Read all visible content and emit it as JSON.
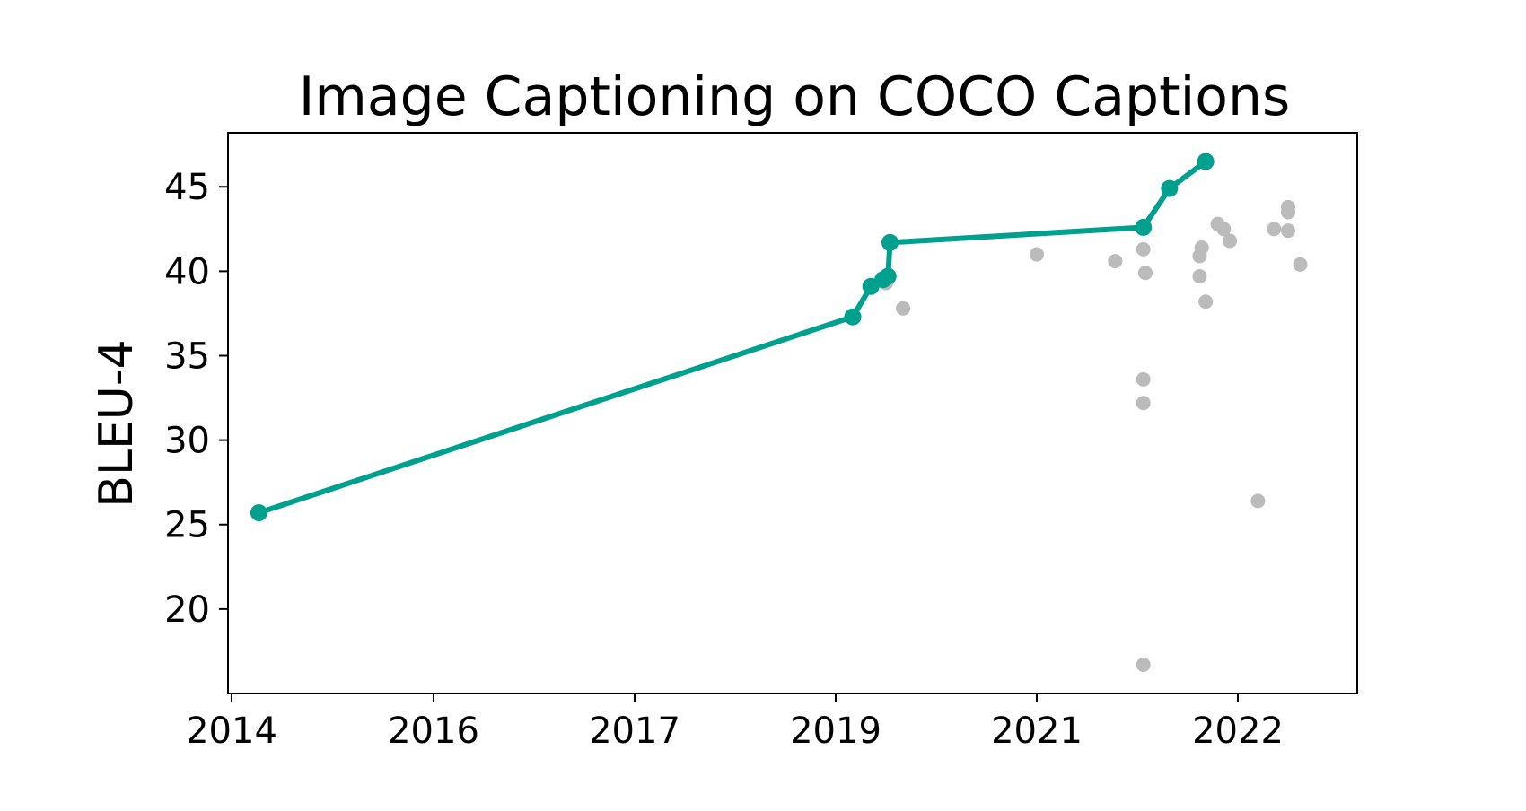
{
  "chart_data": {
    "type": "scatter",
    "title": "Image Captioning on COCO Captions",
    "xlabel": "",
    "ylabel": "BLEU-4",
    "x_ticks": [
      2014,
      2016,
      2017,
      2019,
      2021,
      2022
    ],
    "y_ticks": [
      20,
      25,
      30,
      35,
      40,
      45
    ],
    "ylim": [
      15,
      48.2
    ],
    "grid": false,
    "colors": {
      "frontier": "#00a08f",
      "other": "#bbbbbb"
    },
    "frontier": {
      "points": [
        {
          "x": 2014.27,
          "y": 25.7
        },
        {
          "x": 2019.17,
          "y": 37.3
        },
        {
          "x": 2019.35,
          "y": 39.1
        },
        {
          "x": 2019.47,
          "y": 39.5
        },
        {
          "x": 2019.52,
          "y": 39.7
        },
        {
          "x": 2019.54,
          "y": 41.7
        },
        {
          "x": 2021.53,
          "y": 42.6
        },
        {
          "x": 2021.66,
          "y": 44.9
        },
        {
          "x": 2021.84,
          "y": 46.5
        }
      ]
    },
    "other_points": [
      {
        "x": 2019.5,
        "y": 39.3
      },
      {
        "x": 2019.67,
        "y": 37.8
      },
      {
        "x": 2021.0,
        "y": 41.0
      },
      {
        "x": 2021.39,
        "y": 40.6
      },
      {
        "x": 2021.53,
        "y": 41.3
      },
      {
        "x": 2021.54,
        "y": 39.9
      },
      {
        "x": 2021.53,
        "y": 33.6
      },
      {
        "x": 2021.53,
        "y": 32.2
      },
      {
        "x": 2021.53,
        "y": 16.7
      },
      {
        "x": 2021.81,
        "y": 40.9
      },
      {
        "x": 2021.82,
        "y": 41.4
      },
      {
        "x": 2021.81,
        "y": 39.7
      },
      {
        "x": 2021.84,
        "y": 38.2
      },
      {
        "x": 2021.9,
        "y": 42.8
      },
      {
        "x": 2021.93,
        "y": 42.5
      },
      {
        "x": 2021.96,
        "y": 41.8
      },
      {
        "x": 2022.1,
        "y": 26.4
      },
      {
        "x": 2022.18,
        "y": 42.5
      },
      {
        "x": 2022.25,
        "y": 43.5
      },
      {
        "x": 2022.25,
        "y": 43.8
      },
      {
        "x": 2022.25,
        "y": 42.4
      },
      {
        "x": 2022.31,
        "y": 40.4
      }
    ]
  }
}
